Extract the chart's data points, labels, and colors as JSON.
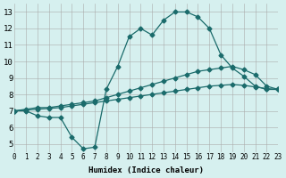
{
  "xlabel": "Humidex (Indice chaleur)",
  "xlim": [
    0,
    23
  ],
  "ylim": [
    4.5,
    13.5
  ],
  "xticks": [
    0,
    1,
    2,
    3,
    4,
    5,
    6,
    7,
    8,
    9,
    10,
    11,
    12,
    13,
    14,
    15,
    16,
    17,
    18,
    19,
    20,
    21,
    22,
    23
  ],
  "yticks": [
    5,
    6,
    7,
    8,
    9,
    10,
    11,
    12,
    13
  ],
  "bg_color": "#d6f0ef",
  "grid_color": "#aaaaaa",
  "line_color": "#1a6b6b",
  "line1_x": [
    0,
    1,
    2,
    3,
    4,
    5,
    6,
    7,
    8,
    9,
    10,
    11,
    12,
    13,
    14,
    15,
    16,
    17,
    18,
    19,
    20,
    21,
    22,
    23
  ],
  "line1_y": [
    7.0,
    7.0,
    6.7,
    6.6,
    6.6,
    5.4,
    4.7,
    4.8,
    8.3,
    9.7,
    11.5,
    12.0,
    11.6,
    12.5,
    13.0,
    13.0,
    12.7,
    12.0,
    10.4,
    9.6,
    9.1,
    8.5,
    8.3,
    8.3
  ],
  "line2_x": [
    0,
    1,
    2,
    3,
    4,
    5,
    6,
    7,
    8,
    9,
    10,
    11,
    12,
    13,
    14,
    15,
    16,
    17,
    18,
    19,
    20,
    21,
    22,
    23
  ],
  "line2_y": [
    7.0,
    7.1,
    7.2,
    7.2,
    7.3,
    7.4,
    7.5,
    7.6,
    7.8,
    8.0,
    8.2,
    8.4,
    8.6,
    8.8,
    9.0,
    9.2,
    9.4,
    9.5,
    9.6,
    9.7,
    9.5,
    9.2,
    8.5,
    8.3
  ],
  "line3_x": [
    0,
    1,
    2,
    3,
    4,
    5,
    6,
    7,
    8,
    9,
    10,
    11,
    12,
    13,
    14,
    15,
    16,
    17,
    18,
    19,
    20,
    21,
    22,
    23
  ],
  "line3_y": [
    7.0,
    7.05,
    7.1,
    7.15,
    7.2,
    7.3,
    7.4,
    7.5,
    7.6,
    7.7,
    7.8,
    7.9,
    8.0,
    8.1,
    8.2,
    8.3,
    8.4,
    8.5,
    8.55,
    8.6,
    8.55,
    8.45,
    8.35,
    8.3
  ]
}
